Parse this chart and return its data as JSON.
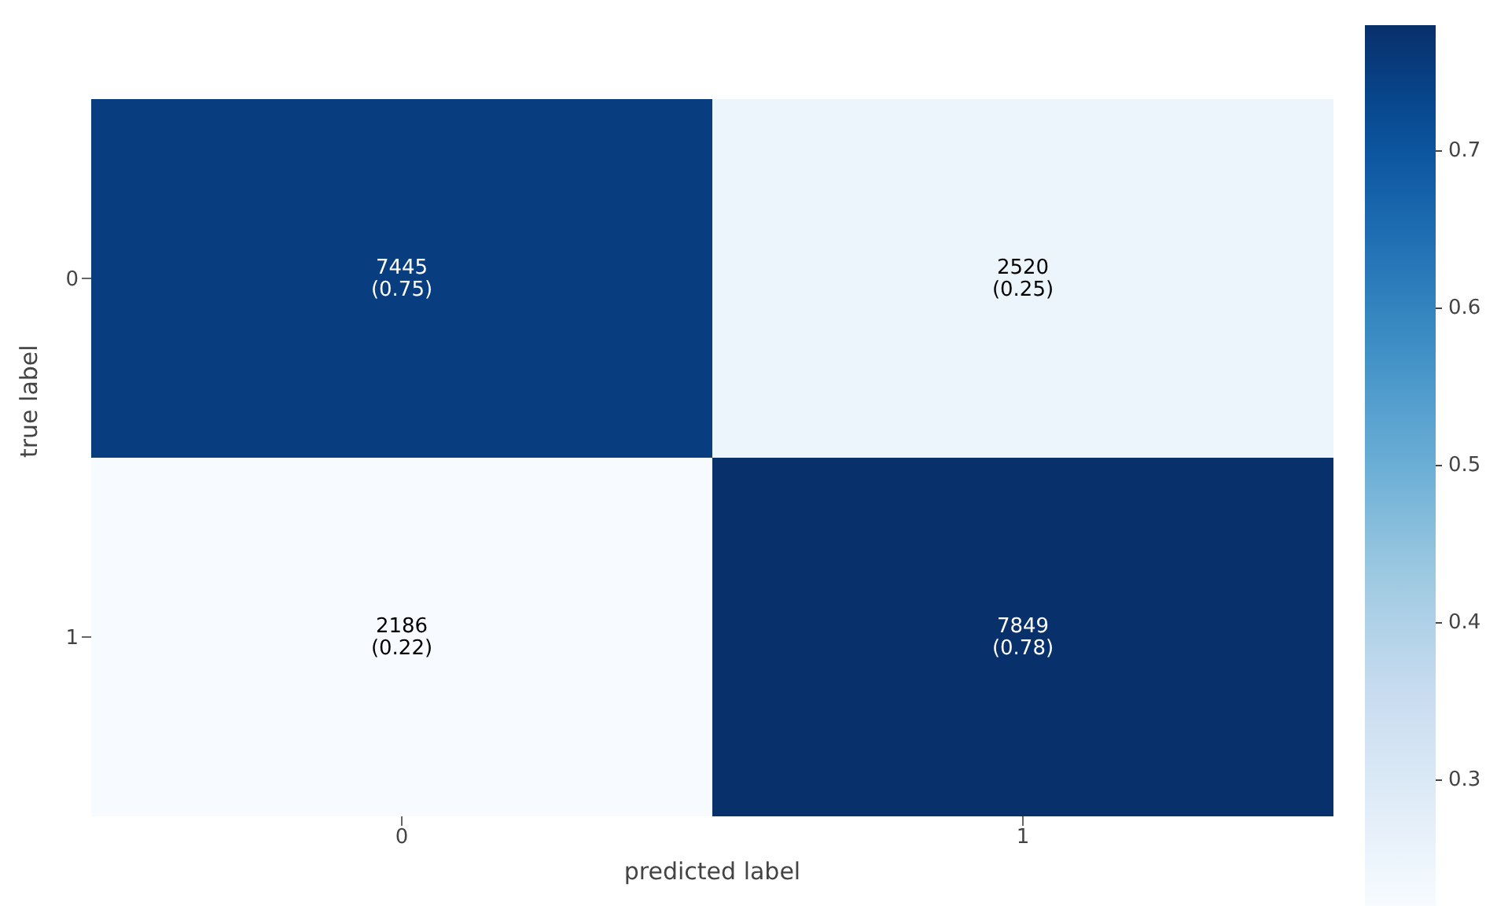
{
  "chart_data": {
    "type": "heatmap",
    "xlabel": "predicted label",
    "ylabel": "true label",
    "categories": [
      "0",
      "1"
    ],
    "y_categories": [
      "0",
      "1"
    ],
    "cells": [
      [
        0.75,
        0.25
      ],
      [
        0.22,
        0.78
      ]
    ],
    "cell_labels": [
      [
        "7445\n(0.75)",
        "2520\n(0.25)"
      ],
      [
        "2186\n(0.22)",
        "7849\n(0.78)"
      ]
    ],
    "clim": [
      0.22,
      0.78
    ],
    "cticks": [
      0.3,
      0.4,
      0.5,
      0.6,
      0.7
    ]
  }
}
